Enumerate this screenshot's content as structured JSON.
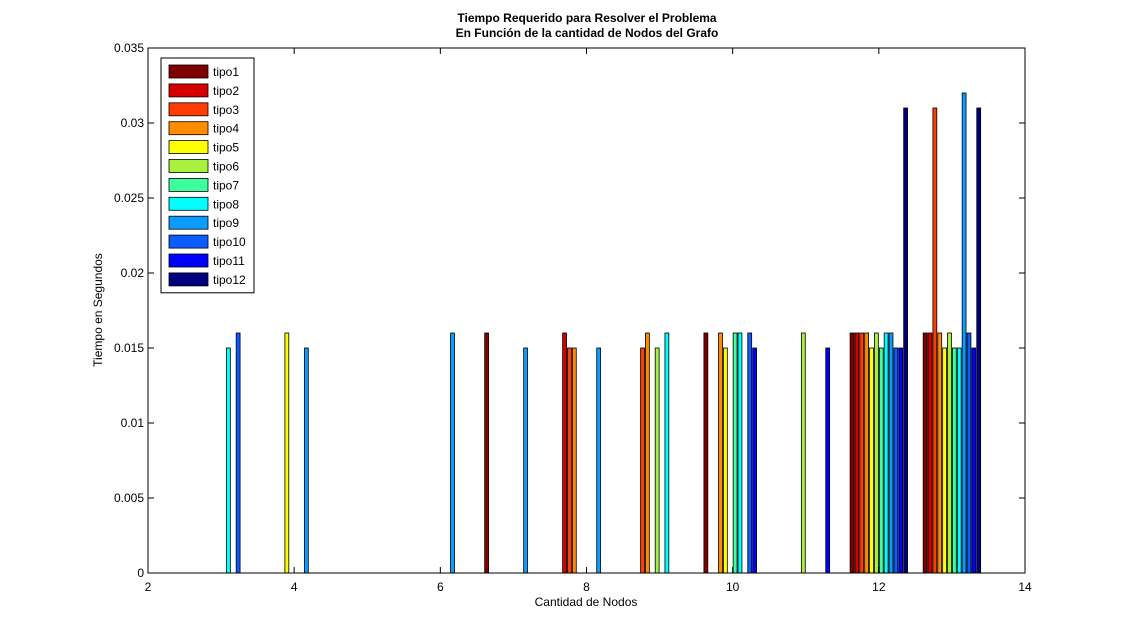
{
  "chart_data": {
    "type": "bar",
    "title": "Tiempo Requerido para Resolver el Problema",
    "subtitle": "En Función de la cantidad de Nodos del Grafo",
    "xlabel": "Cantidad de Nodos",
    "ylabel": "Tiempo en Segundos",
    "xlim": [
      2,
      14
    ],
    "ylim": [
      0,
      0.035
    ],
    "xticks": [
      "2",
      "4",
      "6",
      "8",
      "10",
      "12",
      "14"
    ],
    "yticks": [
      "0",
      "0.005",
      "0.01",
      "0.015",
      "0.02",
      "0.025",
      "0.03",
      "0.035"
    ],
    "grid": false,
    "legend_position": "top-left",
    "categories": [
      3,
      4,
      6,
      7,
      8,
      9,
      10,
      11,
      12,
      13
    ],
    "series": [
      {
        "name": "tipo1",
        "color": "#800000",
        "values": [
          0,
          0,
          0,
          0.016,
          0,
          0,
          0.016,
          0,
          0.016,
          0.016
        ]
      },
      {
        "name": "tipo2",
        "color": "#d40000",
        "values": [
          0,
          0,
          0,
          0,
          0.016,
          0,
          0,
          0,
          0.016,
          0.016
        ]
      },
      {
        "name": "tipo3",
        "color": "#ff3d00",
        "values": [
          0,
          0,
          0,
          0,
          0.015,
          0.015,
          0,
          0,
          0.016,
          0.031
        ]
      },
      {
        "name": "tipo4",
        "color": "#ff8c00",
        "values": [
          0,
          0,
          0,
          0,
          0.015,
          0.016,
          0.016,
          0,
          0.016,
          0.016
        ]
      },
      {
        "name": "tipo5",
        "color": "#ffff00",
        "values": [
          0,
          0.016,
          0,
          0,
          0,
          0,
          0.015,
          0,
          0.015,
          0.015
        ]
      },
      {
        "name": "tipo6",
        "color": "#a8f23d",
        "values": [
          0,
          0,
          0,
          0,
          0,
          0.015,
          0,
          0.016,
          0.016,
          0.016
        ]
      },
      {
        "name": "tipo7",
        "color": "#3dff9e",
        "values": [
          0,
          0,
          0,
          0,
          0,
          0,
          0.016,
          0,
          0.015,
          0.015
        ]
      },
      {
        "name": "tipo8",
        "color": "#00ffff",
        "values": [
          0.015,
          0,
          0,
          0,
          0,
          0.016,
          0.016,
          0,
          0.016,
          0.015
        ]
      },
      {
        "name": "tipo9",
        "color": "#0a9cff",
        "values": [
          0,
          0.015,
          0.016,
          0.015,
          0.015,
          0,
          0,
          0,
          0.016,
          0.032
        ]
      },
      {
        "name": "tipo10",
        "color": "#0a5cff",
        "values": [
          0.016,
          0,
          0,
          0,
          0,
          0,
          0.016,
          0,
          0.015,
          0.016
        ]
      },
      {
        "name": "tipo11",
        "color": "#0000ff",
        "values": [
          0,
          0,
          0,
          0,
          0,
          0,
          0.015,
          0.015,
          0.015,
          0.015
        ]
      },
      {
        "name": "tipo12",
        "color": "#00007f",
        "values": [
          0,
          0,
          0,
          0,
          0,
          0,
          0,
          0,
          0.031,
          0.031
        ]
      }
    ]
  }
}
